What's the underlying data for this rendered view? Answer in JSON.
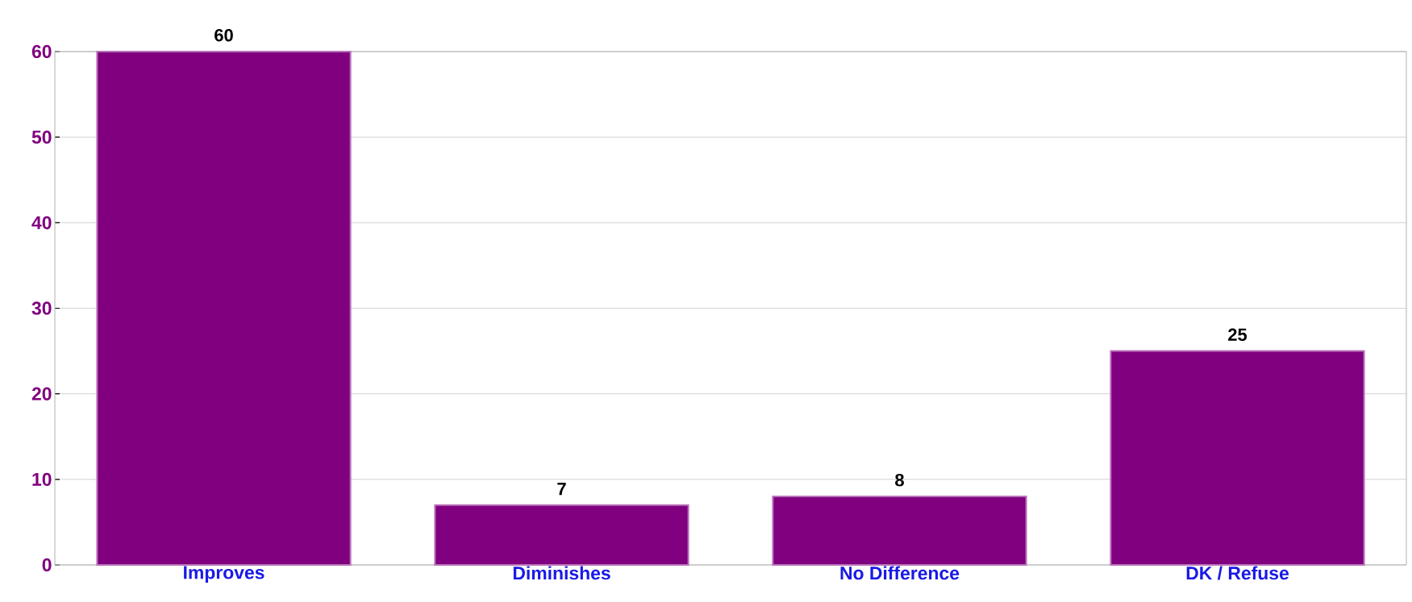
{
  "chart_data": {
    "type": "bar",
    "categories": [
      "Improves",
      "Diminishes",
      "No Difference",
      "DK / Refuse"
    ],
    "values": [
      60,
      7,
      8,
      25
    ],
    "color": "#800080",
    "ylim": [
      0,
      60
    ],
    "yticks": [
      0,
      10,
      20,
      30,
      40,
      50,
      60
    ],
    "grid": "y",
    "data_labels": true
  }
}
